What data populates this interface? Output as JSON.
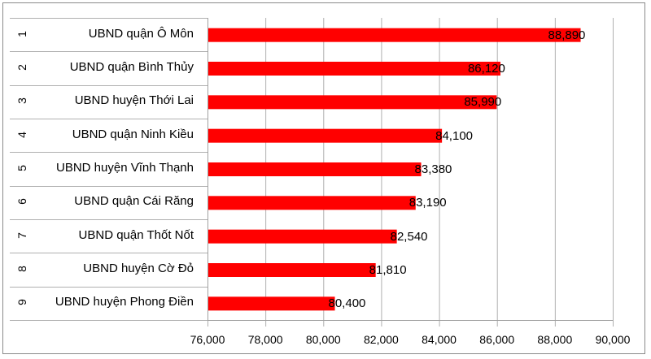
{
  "chart_data": {
    "type": "bar",
    "orientation": "horizontal",
    "title": "",
    "xlabel": "",
    "ylabel": "",
    "ranks": [
      "1",
      "2",
      "3",
      "4",
      "5",
      "6",
      "7",
      "8",
      "9"
    ],
    "categories": [
      "UBND quận Ô Môn",
      "UBND quận Bình Thủy",
      "UBND huyện Thới Lai",
      "UBND quận Ninh Kiều",
      "UBND huyện Vĩnh Thạnh",
      "UBND quận Cái Răng",
      "UBND quận Thốt Nốt",
      "UBND huyện Cờ Đỏ",
      "UBND huyện Phong Điền"
    ],
    "values": [
      88890,
      86120,
      85990,
      84100,
      83380,
      83190,
      82540,
      81810,
      80400
    ],
    "data_labels": [
      "88,890",
      "86,120",
      "85,990",
      "84,100",
      "83,380",
      "83,190",
      "82,540",
      "81,810",
      "80,400"
    ],
    "xlim": [
      76000,
      90000
    ],
    "x_ticks": [
      76000,
      78000,
      80000,
      82000,
      84000,
      86000,
      88000,
      90000
    ],
    "x_tick_labels": [
      "76,000",
      "78,000",
      "80,000",
      "82,000",
      "84,000",
      "86,000",
      "88,000",
      "90,000"
    ],
    "grid": true,
    "legend": "none",
    "bar_color": "#ff0000"
  }
}
